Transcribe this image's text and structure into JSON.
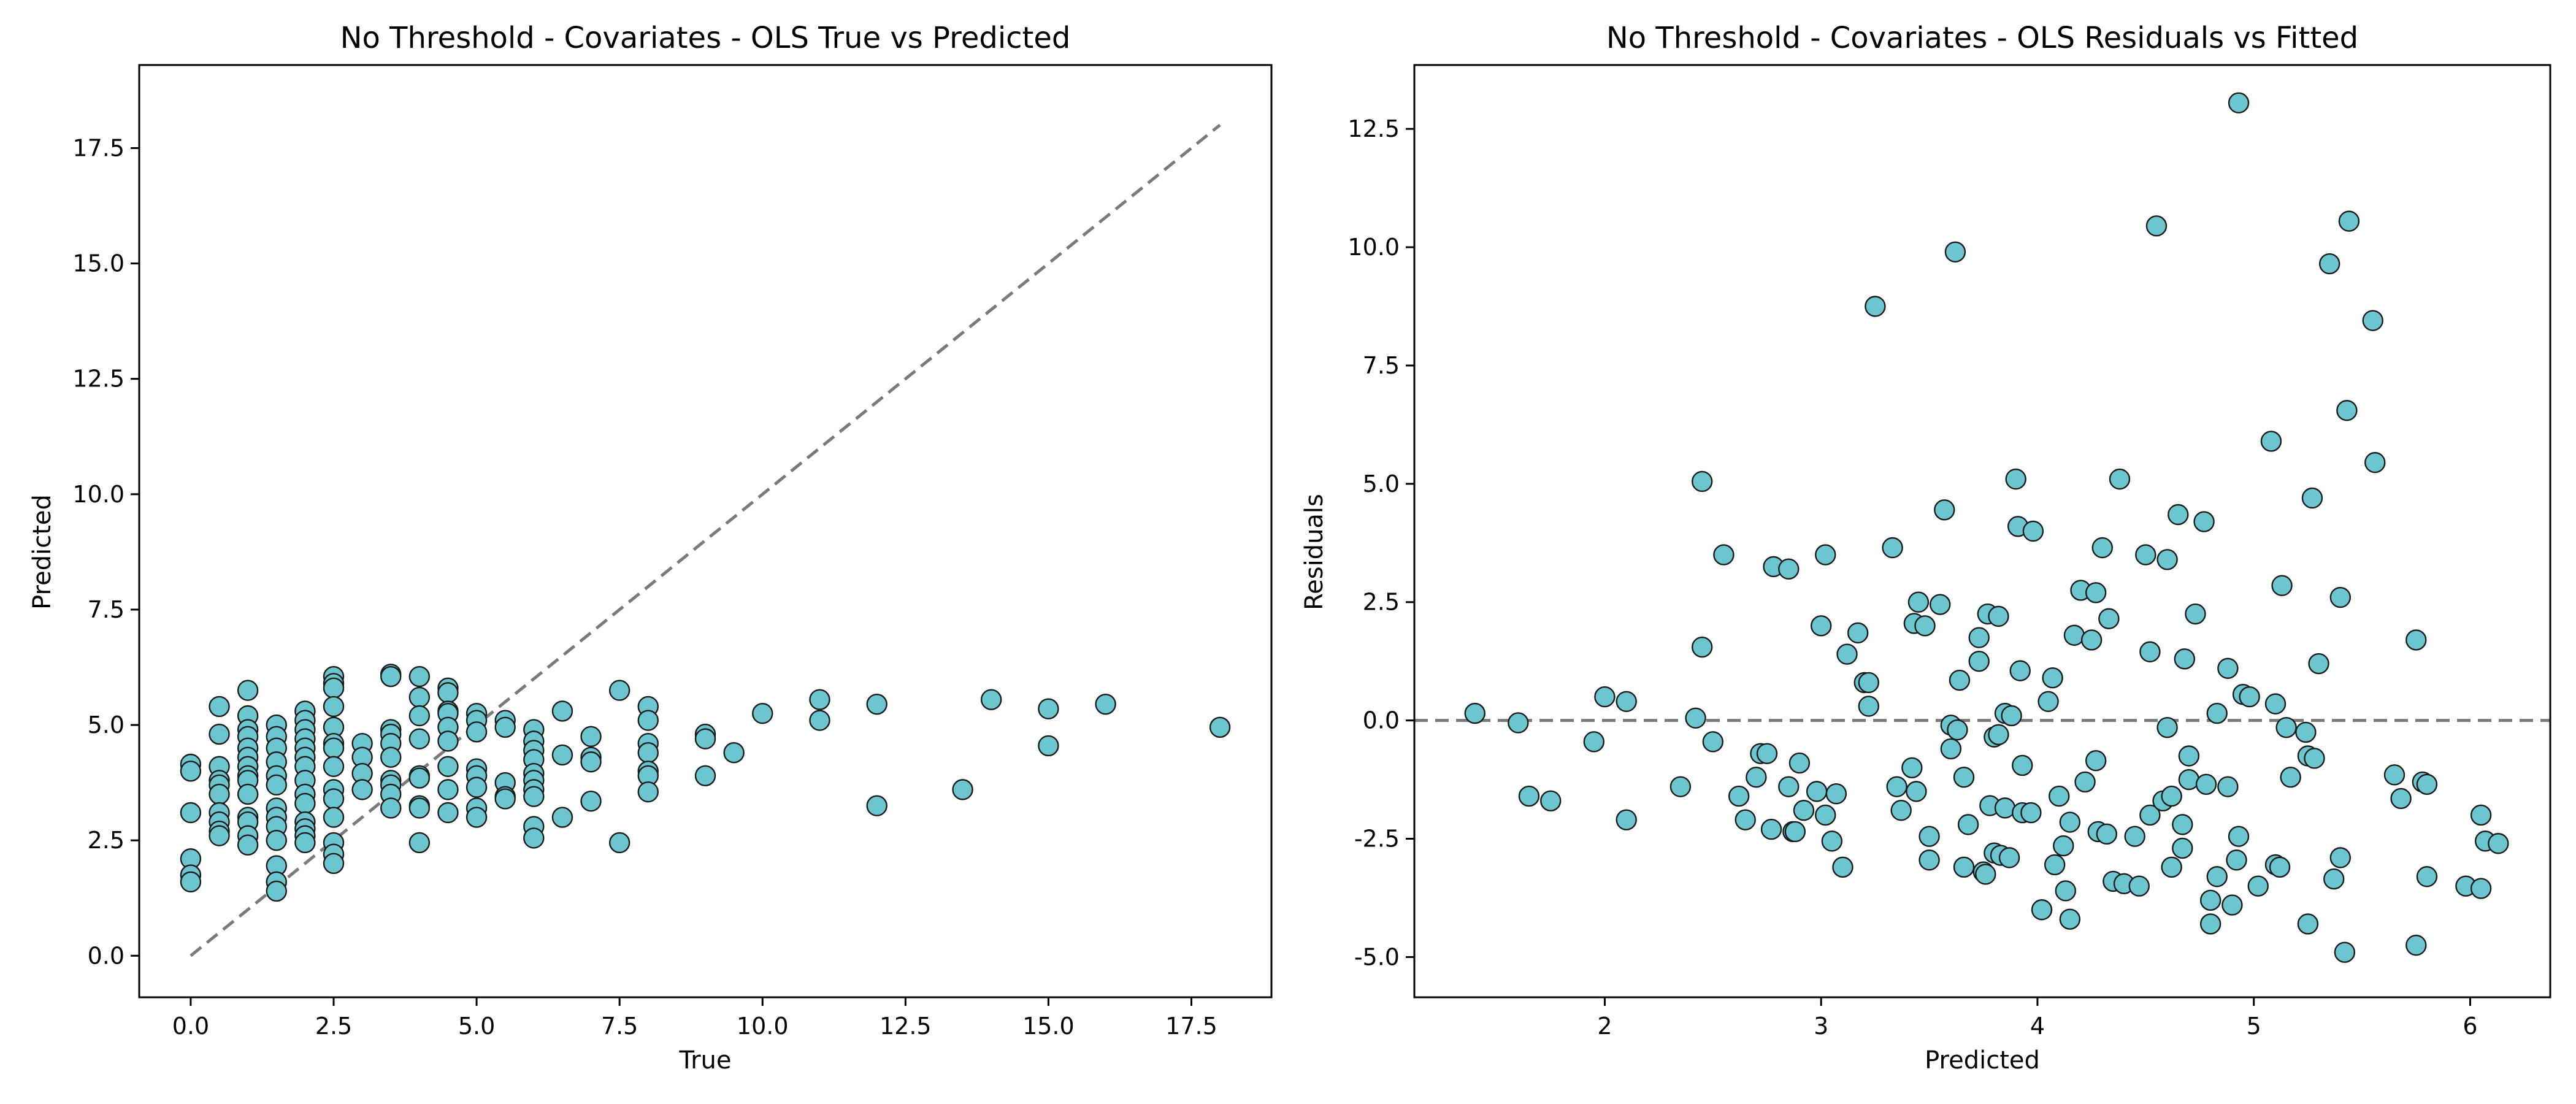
{
  "chart_data": [
    {
      "type": "scatter",
      "title": "No Threshold - Covariates - OLS True vs Predicted",
      "xlabel": "True",
      "ylabel": "Predicted",
      "xlim": [
        -0.9,
        18.9
      ],
      "ylim": [
        -0.9,
        19.3
      ],
      "xticks": [
        0.0,
        2.5,
        5.0,
        7.5,
        10.0,
        12.5,
        15.0,
        17.5
      ],
      "yticks": [
        0.0,
        2.5,
        5.0,
        7.5,
        10.0,
        12.5,
        15.0,
        17.5
      ],
      "tick_decimals": 1,
      "grid": false,
      "reference_line": {
        "style": "dashed",
        "color": "#7a7a7a",
        "from": [
          0,
          0
        ],
        "to": [
          18,
          18
        ]
      },
      "marker_color": "#6cc6d0",
      "points": [
        [
          0,
          4.15
        ],
        [
          0,
          4.0
        ],
        [
          0,
          3.1
        ],
        [
          0,
          2.1
        ],
        [
          0,
          1.75
        ],
        [
          0,
          1.6
        ],
        [
          0.5,
          5.4
        ],
        [
          0.5,
          4.8
        ],
        [
          0.5,
          4.1
        ],
        [
          0.5,
          3.8
        ],
        [
          0.5,
          3.7
        ],
        [
          0.5,
          3.5
        ],
        [
          0.5,
          3.1
        ],
        [
          0.5,
          2.9
        ],
        [
          0.5,
          2.7
        ],
        [
          0.5,
          2.6
        ],
        [
          1,
          5.75
        ],
        [
          1,
          5.2
        ],
        [
          1,
          4.9
        ],
        [
          1,
          4.75
        ],
        [
          1,
          4.5
        ],
        [
          1,
          4.3
        ],
        [
          1,
          4.1
        ],
        [
          1,
          3.9
        ],
        [
          1,
          3.8
        ],
        [
          1,
          3.5
        ],
        [
          1,
          3.0
        ],
        [
          1,
          2.9
        ],
        [
          1,
          2.6
        ],
        [
          1,
          2.4
        ],
        [
          1.5,
          5.0
        ],
        [
          1.5,
          4.75
        ],
        [
          1.5,
          4.5
        ],
        [
          1.5,
          4.2
        ],
        [
          1.5,
          3.9
        ],
        [
          1.5,
          3.7
        ],
        [
          1.5,
          3.2
        ],
        [
          1.5,
          3.0
        ],
        [
          1.5,
          2.8
        ],
        [
          1.5,
          2.5
        ],
        [
          1.5,
          1.95
        ],
        [
          1.5,
          1.6
        ],
        [
          1.5,
          1.4
        ],
        [
          2,
          5.3
        ],
        [
          2,
          5.1
        ],
        [
          2,
          4.9
        ],
        [
          2,
          4.7
        ],
        [
          2,
          4.5
        ],
        [
          2,
          4.3
        ],
        [
          2,
          4.1
        ],
        [
          2,
          3.8
        ],
        [
          2,
          3.5
        ],
        [
          2,
          3.3
        ],
        [
          2,
          2.9
        ],
        [
          2,
          2.75
        ],
        [
          2,
          2.6
        ],
        [
          2,
          2.45
        ],
        [
          2.5,
          6.05
        ],
        [
          2.5,
          5.9
        ],
        [
          2.5,
          5.8
        ],
        [
          2.5,
          5.4
        ],
        [
          2.5,
          4.95
        ],
        [
          2.5,
          4.6
        ],
        [
          2.5,
          4.5
        ],
        [
          2.5,
          4.1
        ],
        [
          2.5,
          3.6
        ],
        [
          2.5,
          3.4
        ],
        [
          2.5,
          3.0
        ],
        [
          2.5,
          2.45
        ],
        [
          2.5,
          2.2
        ],
        [
          2.5,
          2.0
        ],
        [
          3,
          4.6
        ],
        [
          3,
          4.3
        ],
        [
          3,
          3.95
        ],
        [
          3,
          3.6
        ],
        [
          3.5,
          6.1
        ],
        [
          3.5,
          6.05
        ],
        [
          3.5,
          4.9
        ],
        [
          3.5,
          4.8
        ],
        [
          3.5,
          4.6
        ],
        [
          3.5,
          4.3
        ],
        [
          3.5,
          3.8
        ],
        [
          3.5,
          3.7
        ],
        [
          3.5,
          3.5
        ],
        [
          3.5,
          3.2
        ],
        [
          4,
          6.05
        ],
        [
          4,
          5.6
        ],
        [
          4,
          5.2
        ],
        [
          4,
          4.7
        ],
        [
          4,
          3.9
        ],
        [
          4,
          3.85
        ],
        [
          4,
          3.25
        ],
        [
          4,
          3.2
        ],
        [
          4,
          2.45
        ],
        [
          4.5,
          5.8
        ],
        [
          4.5,
          5.7
        ],
        [
          4.5,
          5.3
        ],
        [
          4.5,
          5.25
        ],
        [
          4.5,
          4.95
        ],
        [
          4.5,
          4.65
        ],
        [
          4.5,
          4.1
        ],
        [
          4.5,
          3.6
        ],
        [
          4.5,
          3.1
        ],
        [
          5,
          5.25
        ],
        [
          5,
          5.1
        ],
        [
          5,
          4.85
        ],
        [
          5,
          4.05
        ],
        [
          5,
          3.9
        ],
        [
          5,
          3.65
        ],
        [
          5,
          3.2
        ],
        [
          5,
          3.0
        ],
        [
          5.5,
          5.1
        ],
        [
          5.5,
          4.95
        ],
        [
          5.5,
          3.75
        ],
        [
          5.5,
          3.45
        ],
        [
          5.5,
          3.4
        ],
        [
          6,
          4.9
        ],
        [
          6,
          4.65
        ],
        [
          6,
          4.45
        ],
        [
          6,
          4.25
        ],
        [
          6,
          3.95
        ],
        [
          6,
          3.8
        ],
        [
          6,
          3.6
        ],
        [
          6,
          3.45
        ],
        [
          6,
          2.8
        ],
        [
          6,
          2.55
        ],
        [
          6.5,
          5.3
        ],
        [
          6.5,
          4.35
        ],
        [
          6.5,
          3.0
        ],
        [
          7,
          4.75
        ],
        [
          7,
          4.3
        ],
        [
          7,
          4.2
        ],
        [
          7,
          3.35
        ],
        [
          7.5,
          5.75
        ],
        [
          7.5,
          2.45
        ],
        [
          8,
          5.4
        ],
        [
          8,
          5.1
        ],
        [
          8,
          4.6
        ],
        [
          8,
          4.4
        ],
        [
          8,
          4.0
        ],
        [
          8,
          3.9
        ],
        [
          8,
          3.55
        ],
        [
          9,
          4.8
        ],
        [
          9,
          4.7
        ],
        [
          9,
          3.9
        ],
        [
          9.5,
          4.4
        ],
        [
          10,
          5.25
        ],
        [
          11,
          5.55
        ],
        [
          11,
          5.1
        ],
        [
          12,
          5.45
        ],
        [
          12,
          3.25
        ],
        [
          13.5,
          3.6
        ],
        [
          14,
          5.55
        ],
        [
          15,
          5.35
        ],
        [
          15,
          4.55
        ],
        [
          16,
          5.45
        ],
        [
          18,
          4.95
        ]
      ]
    },
    {
      "type": "scatter",
      "title": "No Threshold - Covariates - OLS Residuals vs Fitted",
      "xlabel": "Predicted",
      "ylabel": "Residuals",
      "xlim": [
        1.12,
        6.37
      ],
      "ylim": [
        -5.85,
        13.85
      ],
      "xticks": [
        2,
        3,
        4,
        5,
        6
      ],
      "yticks": [
        -5.0,
        -2.5,
        0.0,
        2.5,
        5.0,
        7.5,
        10.0,
        12.5
      ],
      "tick_decimals_x": 0,
      "tick_decimals_y": 1,
      "grid": false,
      "reference_line": {
        "style": "dashed",
        "color": "#7a7a7a",
        "y": 0
      },
      "marker_color": "#6cc6d0",
      "points": [
        [
          1.4,
          0.15
        ],
        [
          1.6,
          -0.05
        ],
        [
          1.65,
          -1.6
        ],
        [
          1.75,
          -1.7
        ],
        [
          1.95,
          -0.45
        ],
        [
          2.0,
          0.5
        ],
        [
          2.1,
          0.4
        ],
        [
          2.1,
          -2.1
        ],
        [
          2.35,
          -1.4
        ],
        [
          2.42,
          0.05
        ],
        [
          2.45,
          5.05
        ],
        [
          2.45,
          1.55
        ],
        [
          2.5,
          -0.45
        ],
        [
          2.55,
          3.5
        ],
        [
          2.62,
          -1.6
        ],
        [
          2.65,
          -2.1
        ],
        [
          2.7,
          -1.2
        ],
        [
          2.72,
          -0.7
        ],
        [
          2.75,
          -0.7
        ],
        [
          2.77,
          -2.3
        ],
        [
          2.78,
          3.25
        ],
        [
          2.85,
          3.2
        ],
        [
          2.85,
          -1.4
        ],
        [
          2.87,
          -2.35
        ],
        [
          2.88,
          -2.35
        ],
        [
          2.9,
          -0.9
        ],
        [
          2.92,
          -1.9
        ],
        [
          2.98,
          -1.5
        ],
        [
          3.0,
          2.0
        ],
        [
          3.02,
          -2.0
        ],
        [
          3.02,
          3.5
        ],
        [
          3.05,
          -2.55
        ],
        [
          3.07,
          -1.55
        ],
        [
          3.1,
          -3.1
        ],
        [
          3.12,
          1.4
        ],
        [
          3.17,
          1.85
        ],
        [
          3.2,
          0.8
        ],
        [
          3.22,
          0.8
        ],
        [
          3.22,
          0.3
        ],
        [
          3.25,
          8.75
        ],
        [
          3.33,
          3.65
        ],
        [
          3.35,
          -1.4
        ],
        [
          3.37,
          -1.9
        ],
        [
          3.42,
          -1.0
        ],
        [
          3.43,
          2.05
        ],
        [
          3.44,
          -1.5
        ],
        [
          3.45,
          2.5
        ],
        [
          3.48,
          2.0
        ],
        [
          3.5,
          -2.45
        ],
        [
          3.5,
          -2.95
        ],
        [
          3.55,
          2.45
        ],
        [
          3.57,
          4.45
        ],
        [
          3.6,
          -0.6
        ],
        [
          3.6,
          -0.1
        ],
        [
          3.62,
          9.9
        ],
        [
          3.63,
          -0.2
        ],
        [
          3.64,
          0.85
        ],
        [
          3.66,
          -1.2
        ],
        [
          3.66,
          -3.1
        ],
        [
          3.68,
          -2.2
        ],
        [
          3.73,
          1.75
        ],
        [
          3.73,
          1.25
        ],
        [
          3.75,
          -3.2
        ],
        [
          3.76,
          -3.25
        ],
        [
          3.77,
          2.25
        ],
        [
          3.78,
          -1.8
        ],
        [
          3.8,
          -2.8
        ],
        [
          3.8,
          -0.35
        ],
        [
          3.82,
          2.2
        ],
        [
          3.82,
          -0.3
        ],
        [
          3.83,
          -2.85
        ],
        [
          3.85,
          -1.85
        ],
        [
          3.85,
          0.15
        ],
        [
          3.87,
          -2.9
        ],
        [
          3.88,
          0.1
        ],
        [
          3.9,
          5.1
        ],
        [
          3.91,
          4.1
        ],
        [
          3.92,
          1.05
        ],
        [
          3.93,
          -0.95
        ],
        [
          3.93,
          -1.95
        ],
        [
          3.97,
          -1.95
        ],
        [
          3.98,
          4.0
        ],
        [
          4.02,
          -4.0
        ],
        [
          4.05,
          0.4
        ],
        [
          4.07,
          0.9
        ],
        [
          4.08,
          -3.05
        ],
        [
          4.1,
          -1.6
        ],
        [
          4.12,
          -2.65
        ],
        [
          4.13,
          -3.6
        ],
        [
          4.15,
          -4.2
        ],
        [
          4.15,
          -2.15
        ],
        [
          4.17,
          1.8
        ],
        [
          4.2,
          2.75
        ],
        [
          4.22,
          -1.3
        ],
        [
          4.25,
          1.7
        ],
        [
          4.27,
          2.7
        ],
        [
          4.27,
          -0.85
        ],
        [
          4.28,
          -2.35
        ],
        [
          4.3,
          3.65
        ],
        [
          4.32,
          -2.4
        ],
        [
          4.33,
          2.15
        ],
        [
          4.35,
          -3.4
        ],
        [
          4.38,
          5.1
        ],
        [
          4.4,
          -3.45
        ],
        [
          4.45,
          -2.45
        ],
        [
          4.47,
          -3.5
        ],
        [
          4.5,
          3.5
        ],
        [
          4.52,
          -2.0
        ],
        [
          4.52,
          1.45
        ],
        [
          4.55,
          10.45
        ],
        [
          4.58,
          -1.7
        ],
        [
          4.6,
          3.4
        ],
        [
          4.6,
          -0.15
        ],
        [
          4.62,
          -1.6
        ],
        [
          4.62,
          -3.1
        ],
        [
          4.65,
          4.35
        ],
        [
          4.67,
          -2.2
        ],
        [
          4.67,
          -2.7
        ],
        [
          4.68,
          1.3
        ],
        [
          4.7,
          -0.75
        ],
        [
          4.7,
          -1.25
        ],
        [
          4.73,
          2.25
        ],
        [
          4.77,
          4.2
        ],
        [
          4.78,
          -1.35
        ],
        [
          4.8,
          -4.3
        ],
        [
          4.8,
          -3.8
        ],
        [
          4.83,
          0.15
        ],
        [
          4.83,
          -3.3
        ],
        [
          4.88,
          1.1
        ],
        [
          4.88,
          -1.4
        ],
        [
          4.9,
          -3.9
        ],
        [
          4.92,
          -2.95
        ],
        [
          4.93,
          13.05
        ],
        [
          4.93,
          -2.45
        ],
        [
          4.95,
          0.55
        ],
        [
          4.98,
          0.5
        ],
        [
          5.02,
          -3.5
        ],
        [
          5.08,
          5.9
        ],
        [
          5.1,
          -3.05
        ],
        [
          5.1,
          0.35
        ],
        [
          5.12,
          -3.1
        ],
        [
          5.13,
          2.85
        ],
        [
          5.15,
          -0.15
        ],
        [
          5.17,
          -1.2
        ],
        [
          5.24,
          -0.25
        ],
        [
          5.25,
          -4.3
        ],
        [
          5.25,
          -0.75
        ],
        [
          5.27,
          4.7
        ],
        [
          5.28,
          -0.8
        ],
        [
          5.3,
          1.2
        ],
        [
          5.35,
          9.65
        ],
        [
          5.37,
          -3.35
        ],
        [
          5.4,
          2.6
        ],
        [
          5.4,
          -2.9
        ],
        [
          5.42,
          -4.9
        ],
        [
          5.43,
          6.55
        ],
        [
          5.44,
          10.55
        ],
        [
          5.55,
          8.45
        ],
        [
          5.56,
          5.45
        ],
        [
          5.65,
          -1.15
        ],
        [
          5.68,
          -1.65
        ],
        [
          5.75,
          1.7
        ],
        [
          5.75,
          -4.75
        ],
        [
          5.78,
          -1.3
        ],
        [
          5.8,
          -1.35
        ],
        [
          5.8,
          -3.3
        ],
        [
          5.98,
          -3.5
        ],
        [
          6.05,
          -2.0
        ],
        [
          6.05,
          -3.55
        ],
        [
          6.07,
          -2.55
        ],
        [
          6.13,
          -2.6
        ]
      ]
    }
  ]
}
